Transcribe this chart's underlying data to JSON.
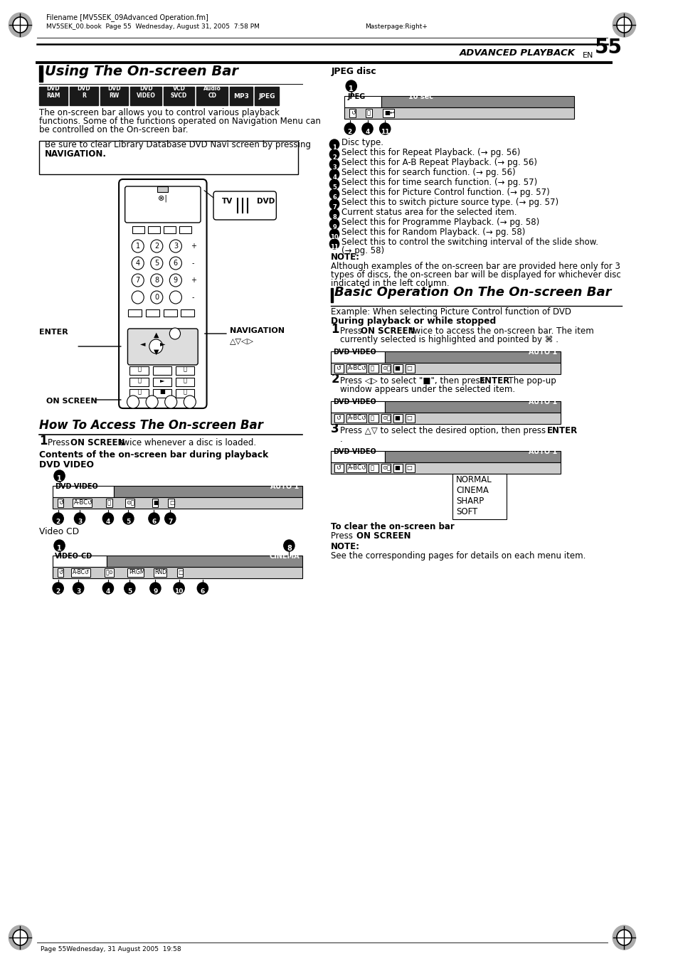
{
  "page_title": "ADVANCED PLAYBACK",
  "page_num": "55",
  "lang": "EN",
  "header_filename": "Filename [MV5SEK_09Advanced Operation.fm]",
  "header_book": "MV5SEK_00.book  Page 55  Wednesday, August 31, 2005  7:58 PM",
  "header_master": "Masterpage:Right+",
  "footer": "Page 55Wednesday, 31 August 2005  19:58",
  "main_title": "Using The On-screen Bar",
  "disc_labels": [
    "DVD\nRAM",
    "DVD\nR",
    "DVD\nRW",
    "DVD\nVIDEO",
    "VCD\nSVCD",
    "Audio\nCD",
    "MP3",
    "JPEG"
  ],
  "intro_text": "The on-screen bar allows you to control various playback\nfunctions. Some of the functions operated on Navigation Menu can\nbe controlled on the On-screen bar.",
  "note_box_line1": "Be sure to clear Library Database DVD Navi screen by pressing",
  "note_box_line2": "NAVIGATION.",
  "section2_title": "How To Access The On-screen Bar",
  "step1_text": "Press ON SCREEN twice whenever a disc is loaded.",
  "contents_title": "Contents of the on-screen bar during playback",
  "dvd_video_label": "DVD VIDEO",
  "video_cd_label": "Video CD",
  "jpeg_disc_label": "JPEG disc",
  "section3_title": "Basic Operation On The On-screen Bar",
  "example_text": "Example: When selecting Picture Control function of DVD",
  "during_label": "During playback or while stopped",
  "clear_label": "To clear the on-screen bar",
  "note_label": "NOTE:",
  "note_text": "See the corresponding pages for details on each menu item.",
  "jpeg_note_label": "NOTE:",
  "jpeg_note_text1": "Although examples of the on-screen bar are provided here only for 3",
  "jpeg_note_text2": "types of discs, the on-screen bar will be displayed for whichever disc",
  "jpeg_note_text3": "indicated in the left column.",
  "numbered_items": [
    "Disc type.",
    "Select this for Repeat Playback. (→ pg. 56)",
    "Select this for A-B Repeat Playback. (→ pg. 56)",
    "Select this for search function. (→ pg. 56)",
    "Select this for time search function. (→ pg. 57)",
    "Select this for Picture Control function. (→ pg. 57)",
    "Select this to switch picture source type. (→ pg. 57)",
    "Current status area for the selected item.",
    "Select this for Programme Playback. (→ pg. 58)",
    "Select this for Random Playback. (→ pg. 58)",
    "Select this to control the switching interval of the slide show.",
    "(→ pg. 58)"
  ],
  "popup_options": [
    "NORMAL",
    "CINEMA",
    "SHARP",
    "SOFT"
  ],
  "bg_color": "#ffffff"
}
